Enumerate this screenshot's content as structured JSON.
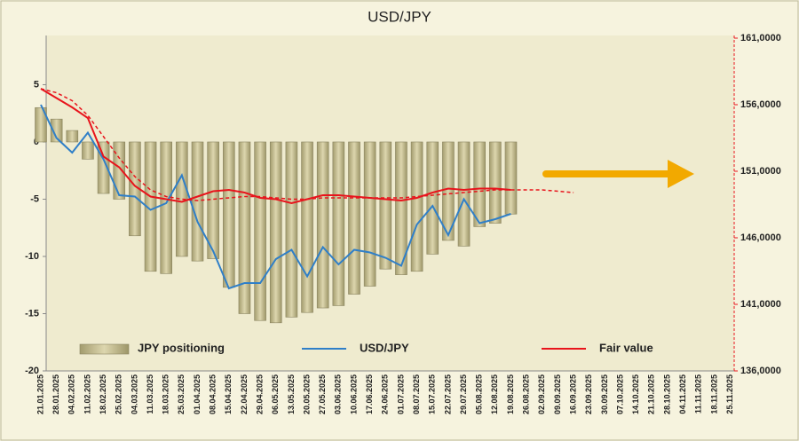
{
  "chart_data": {
    "type": "bar",
    "title": "USD/JPY",
    "categories": [
      "21.01.2025",
      "28.01.2025",
      "04.02.2025",
      "11.02.2025",
      "18.02.2025",
      "25.02.2025",
      "04.03.2025",
      "11.03.2025",
      "18.03.2025",
      "25.03.2025",
      "01.04.2025",
      "08.04.2025",
      "15.04.2025",
      "22.04.2025",
      "29.04.2025",
      "06.05.2025",
      "13.05.2025",
      "20.05.2025",
      "27.05.2025",
      "03.06.2025",
      "10.06.2025",
      "17.06.2025",
      "24.06.2025",
      "01.07.2025",
      "08.07.2025",
      "15.07.2025",
      "22.07.2025",
      "29.07.2025",
      "05.08.2025",
      "12.08.2025",
      "19.08.2025",
      "26.08.2025",
      "02.09.2025",
      "09.09.2025",
      "16.09.2025",
      "23.09.2025",
      "30.09.2025",
      "07.10.2025",
      "14.10.2025",
      "21.10.2025",
      "28.10.2025",
      "04.11.2025",
      "11.11.2025",
      "18.11.2025",
      "25.11.2025"
    ],
    "series": [
      {
        "name": "JPY positioning",
        "type": "bar",
        "color": "#c9c198",
        "values": [
          3.0,
          2.0,
          1.0,
          -1.5,
          -4.5,
          -5.0,
          -8.2,
          -11.3,
          -11.5,
          -10.0,
          -10.4,
          -10.2,
          -12.7,
          -15.0,
          -15.6,
          -15.8,
          -15.3,
          -14.9,
          -14.5,
          -14.3,
          -13.3,
          -12.6,
          -11.1,
          -11.6,
          -11.3,
          -9.8,
          -8.6,
          -9.1,
          -7.4,
          -7.1,
          -6.3,
          null,
          null,
          null,
          null,
          null,
          null,
          null,
          null,
          null,
          null,
          null,
          null,
          null,
          null
        ]
      },
      {
        "name": "USD/JPY",
        "type": "line",
        "axis": "y2",
        "color": "#2f7fc8",
        "values": [
          156.0,
          153.5,
          152.4,
          153.9,
          151.9,
          149.2,
          149.1,
          148.1,
          148.6,
          150.7,
          147.2,
          145.0,
          142.2,
          142.6,
          142.6,
          144.4,
          145.1,
          143.1,
          145.3,
          144.0,
          145.1,
          144.9,
          144.5,
          143.9,
          147.0,
          148.4,
          146.2,
          148.9,
          147.1,
          147.4,
          147.8,
          null,
          null,
          null,
          null,
          null,
          null,
          null,
          null,
          null,
          null,
          null,
          null,
          null,
          null
        ]
      },
      {
        "name": "Fair value",
        "type": "line",
        "axis": "y2",
        "color": "#e8141c",
        "values": [
          157.2,
          156.5,
          155.8,
          155.0,
          152.1,
          151.3,
          149.9,
          149.1,
          148.9,
          148.7,
          149.1,
          149.5,
          149.6,
          149.4,
          149.0,
          148.9,
          148.6,
          148.9,
          149.2,
          149.2,
          149.1,
          149.0,
          148.9,
          148.8,
          149.0,
          149.4,
          149.7,
          149.6,
          149.7,
          149.7,
          149.6,
          null,
          null,
          null,
          null,
          null,
          null,
          null,
          null,
          null,
          null,
          null,
          null,
          null,
          null
        ]
      },
      {
        "type": "line",
        "axis": "y2",
        "color": "#e8141c",
        "dashed": true,
        "values": [
          157.2,
          156.9,
          156.3,
          155.2,
          153.6,
          152.0,
          150.6,
          149.6,
          149.1,
          148.9,
          148.8,
          148.9,
          149.0,
          149.1,
          149.1,
          149.0,
          148.9,
          148.9,
          149.0,
          149.0,
          149.0,
          149.0,
          149.0,
          149.0,
          149.1,
          149.2,
          149.3,
          149.4,
          149.5,
          149.6,
          149.6,
          149.6,
          149.6,
          149.5,
          149.4,
          null,
          null,
          null,
          null,
          null,
          null,
          null,
          null,
          null,
          null
        ]
      }
    ],
    "ylim": [
      -20,
      9.3
    ],
    "yticks": [
      5,
      0,
      -5,
      -10,
      -15,
      -20
    ],
    "y2lim": [
      136,
      161.2
    ],
    "y2ticks": [
      {
        "value": 161,
        "label": "161,0000"
      },
      {
        "value": 156,
        "label": "156,0000"
      },
      {
        "value": 151,
        "label": "151,0000"
      },
      {
        "value": 146,
        "label": "146,0000"
      },
      {
        "value": 141,
        "label": "141,0000"
      },
      {
        "value": 136,
        "label": "136,0000"
      }
    ],
    "grid": false
  }
}
